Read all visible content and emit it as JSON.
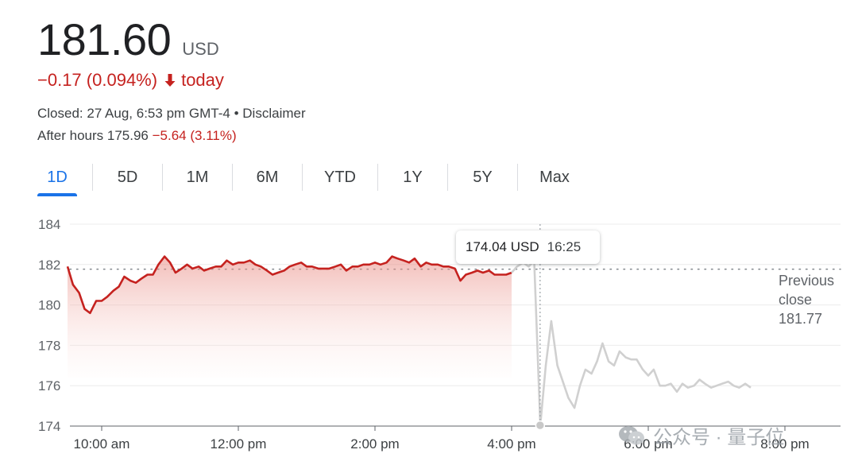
{
  "quote": {
    "price": "181.60",
    "currency": "USD",
    "change_value": "−0.17",
    "change_percent": "(0.094%)",
    "change_period": "today",
    "closed_label": "Closed: 27 Aug, 6:53 pm GMT-4",
    "bullet": "•",
    "disclaimer": "Disclaimer",
    "after_hours_label": "After hours",
    "after_hours_price": "175.96",
    "after_hours_change": "−5.64 (3.11%)"
  },
  "tabs": [
    {
      "label": "1D",
      "active": true
    },
    {
      "label": "5D"
    },
    {
      "label": "1M"
    },
    {
      "label": "6M"
    },
    {
      "label": "YTD"
    },
    {
      "label": "1Y"
    },
    {
      "label": "5Y"
    },
    {
      "label": "Max"
    }
  ],
  "tooltip": {
    "value": "174.04 USD",
    "time": "16:25"
  },
  "previous_close": {
    "line1": "Previous",
    "line2": "close",
    "value": "181.77"
  },
  "watermark": {
    "icon": "wechat-icon",
    "text": "公众号 · 量子位"
  },
  "colors": {
    "down": "#c5221f",
    "accent": "#1a73e8",
    "after_hours_line": "#d0d0d0"
  },
  "chart_data": {
    "type": "line",
    "ylim": [
      174,
      184
    ],
    "y_ticks": [
      174,
      176,
      178,
      180,
      182,
      184
    ],
    "x_ticks": [
      {
        "label": "10:00 am",
        "hour": 10
      },
      {
        "label": "12:00 pm",
        "hour": 12
      },
      {
        "label": "2:00 pm",
        "hour": 14
      },
      {
        "label": "4:00 pm",
        "hour": 16
      },
      {
        "label": "6:00 pm",
        "hour": 18
      },
      {
        "label": "8:00 pm",
        "hour": 20
      }
    ],
    "previous_close": 181.77,
    "hover_hour": 16.4167,
    "hover_value": 174.04,
    "series": [
      {
        "segment": "regular",
        "x": [
          9.5,
          9.58,
          9.67,
          9.75,
          9.83,
          9.92,
          10,
          10.08,
          10.17,
          10.25,
          10.33,
          10.42,
          10.5,
          10.58,
          10.67,
          10.75,
          10.83,
          10.92,
          11,
          11.08,
          11.17,
          11.25,
          11.33,
          11.42,
          11.5,
          11.58,
          11.67,
          11.75,
          11.83,
          11.92,
          12,
          12.08,
          12.17,
          12.25,
          12.33,
          12.42,
          12.5,
          12.58,
          12.67,
          12.75,
          12.83,
          12.92,
          13,
          13.08,
          13.17,
          13.25,
          13.33,
          13.42,
          13.5,
          13.58,
          13.67,
          13.75,
          13.83,
          13.92,
          14,
          14.08,
          14.17,
          14.25,
          14.33,
          14.42,
          14.5,
          14.58,
          14.67,
          14.75,
          14.83,
          14.92,
          15,
          15.08,
          15.17,
          15.25,
          15.33,
          15.42,
          15.5,
          15.58,
          15.67,
          15.75,
          15.83,
          15.92,
          16
        ],
        "values": [
          181.9,
          181.0,
          180.6,
          179.8,
          179.6,
          180.2,
          180.2,
          180.4,
          180.7,
          180.9,
          181.4,
          181.2,
          181.1,
          181.3,
          181.5,
          181.5,
          182.0,
          182.4,
          182.1,
          181.6,
          181.8,
          182.0,
          181.8,
          181.9,
          181.7,
          181.8,
          181.9,
          181.9,
          182.2,
          182.0,
          182.1,
          182.1,
          182.2,
          182.0,
          181.9,
          181.7,
          181.5,
          181.6,
          181.7,
          181.9,
          182.0,
          182.1,
          181.9,
          181.9,
          181.8,
          181.8,
          181.8,
          181.9,
          182.0,
          181.7,
          181.9,
          181.9,
          182.0,
          182.0,
          182.1,
          182.0,
          182.1,
          182.4,
          182.3,
          182.2,
          182.1,
          182.3,
          181.9,
          182.1,
          182.0,
          182.0,
          181.9,
          181.9,
          181.8,
          181.2,
          181.5,
          181.6,
          181.7,
          181.6,
          181.7,
          181.5,
          181.5,
          181.5,
          181.6
        ]
      },
      {
        "segment": "after_hours",
        "x": [
          16,
          16.08,
          16.17,
          16.25,
          16.33,
          16.42,
          16.5,
          16.58,
          16.67,
          16.75,
          16.83,
          16.92,
          17,
          17.08,
          17.17,
          17.25,
          17.33,
          17.42,
          17.5,
          17.58,
          17.67,
          17.75,
          17.83,
          17.92,
          18,
          18.08,
          18.17,
          18.25,
          18.33,
          18.42,
          18.5,
          18.58,
          18.67,
          18.75,
          18.83,
          18.92,
          19,
          19.08,
          19.17,
          19.25,
          19.33,
          19.42,
          19.5
        ],
        "values": [
          181.6,
          181.9,
          182.1,
          181.9,
          182.2,
          174.04,
          177.0,
          179.2,
          177.0,
          176.2,
          175.4,
          174.9,
          176.0,
          176.8,
          176.6,
          177.2,
          178.1,
          177.2,
          177.0,
          177.7,
          177.4,
          177.3,
          177.3,
          176.8,
          176.5,
          176.8,
          176.0,
          176.0,
          176.1,
          175.7,
          176.1,
          175.9,
          176.0,
          176.3,
          176.1,
          175.9,
          176.0,
          176.1,
          176.2,
          176.0,
          175.9,
          176.1,
          175.9
        ]
      }
    ]
  }
}
